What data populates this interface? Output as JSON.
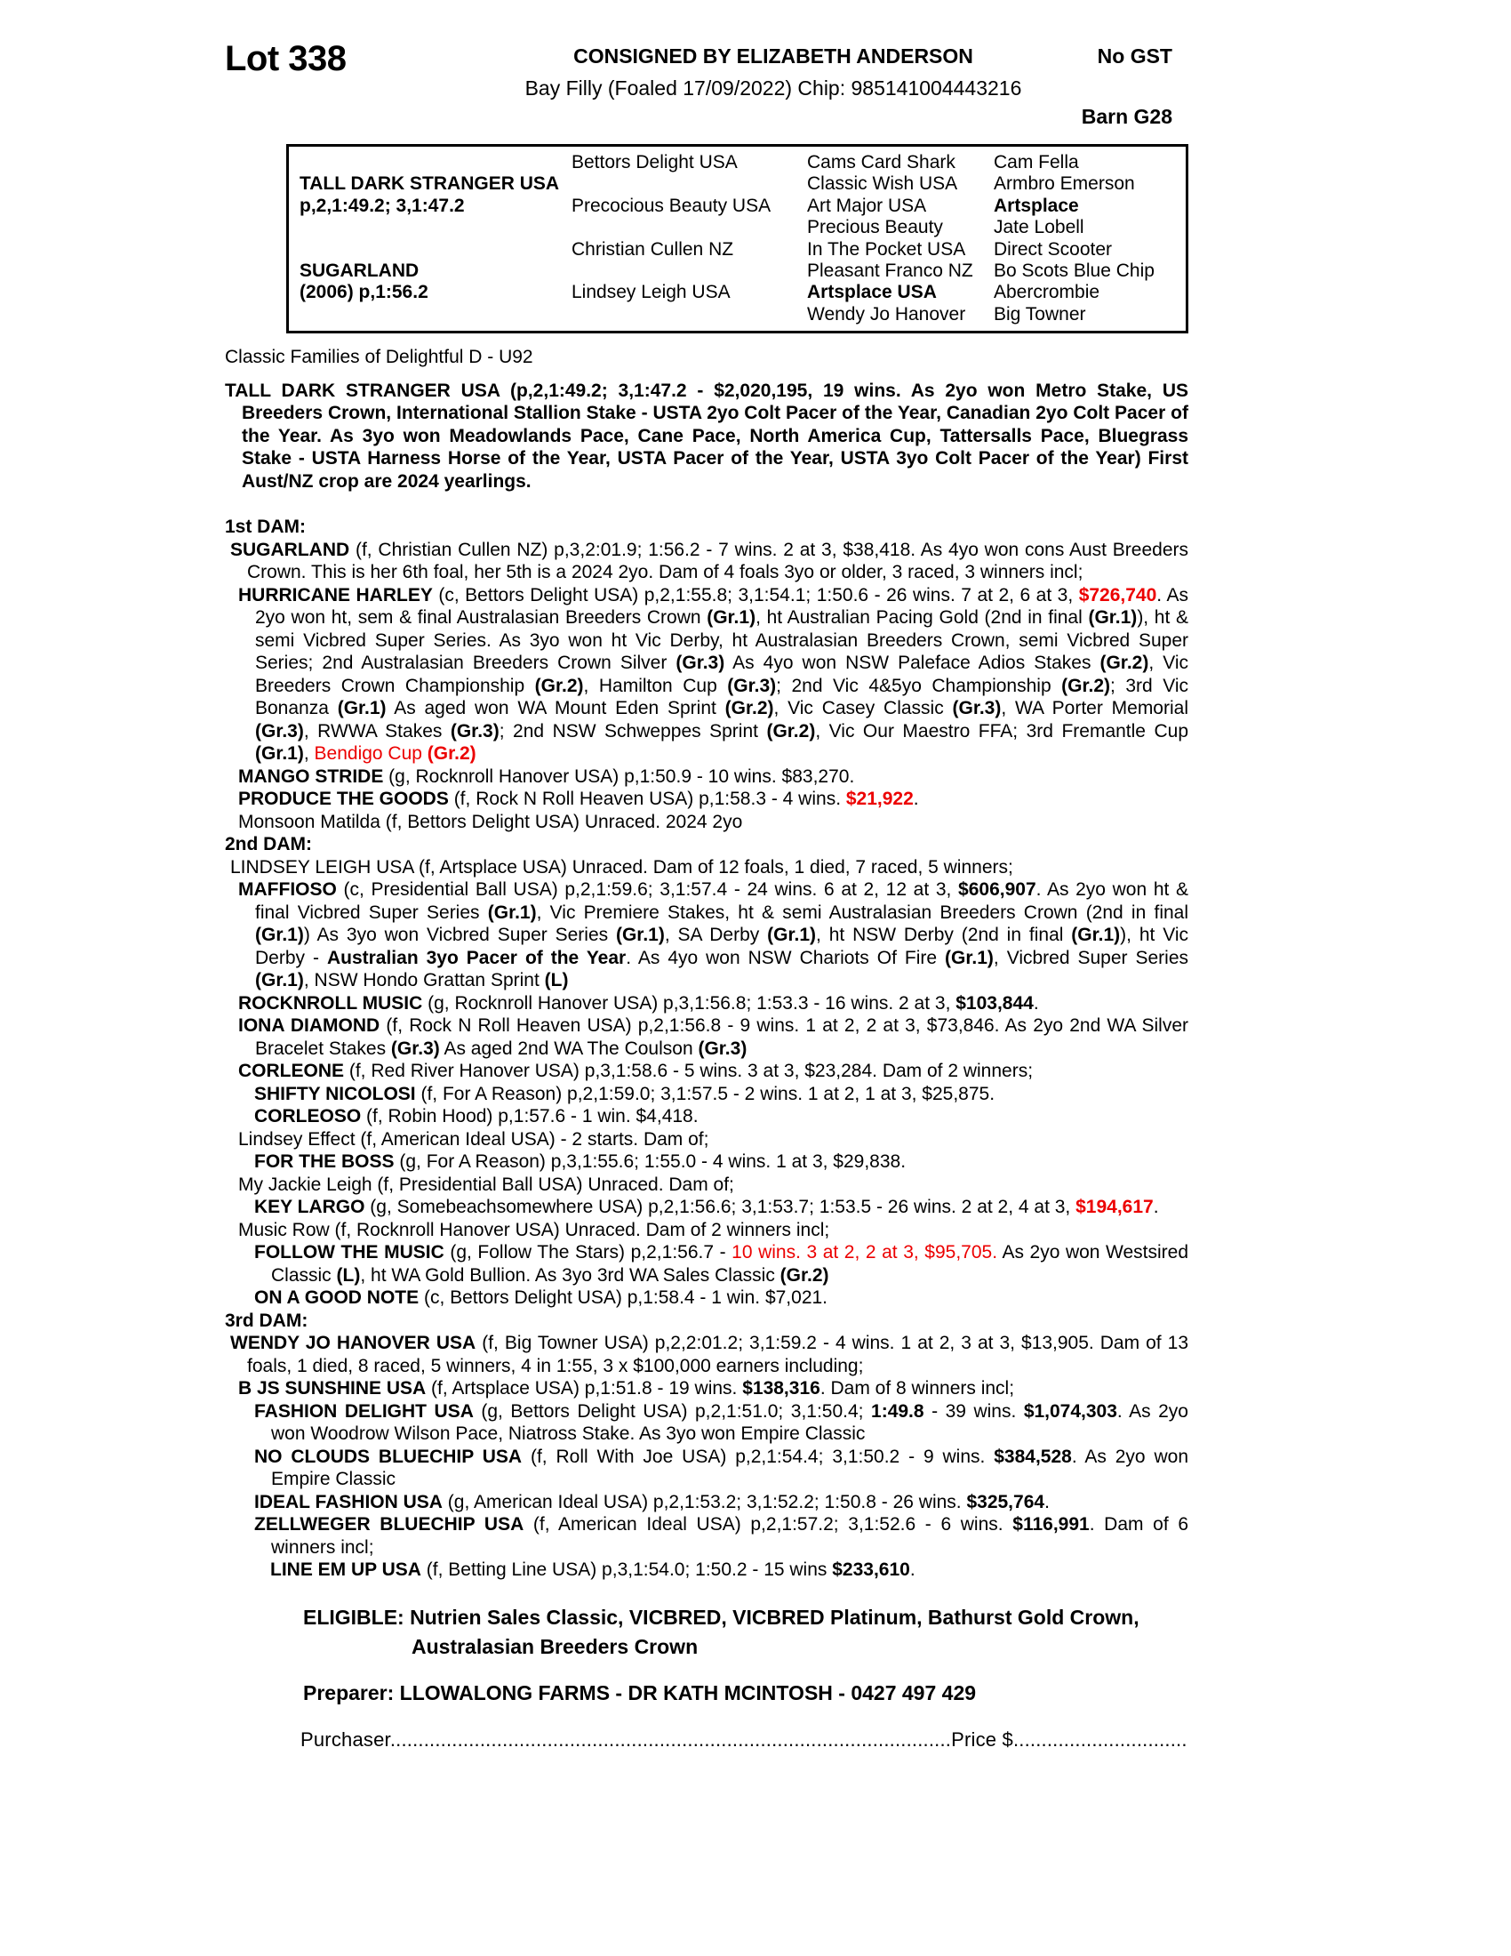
{
  "colors": {
    "text": "#000000",
    "highlight_red": "#ec0000"
  },
  "header": {
    "lot": "Lot 338",
    "consignor": "CONSIGNED BY ELIZABETH ANDERSON",
    "description": "Bay Filly (Foaled 17/09/2022) Chip: 985141004443216",
    "gst": "No GST",
    "barn": "Barn G28"
  },
  "pedigree_table": {
    "rows": [
      [
        {
          "t": "",
          "b": false
        },
        {
          "t": "Bettors Delight USA",
          "b": false
        },
        {
          "t": "Cams Card Shark",
          "b": false
        },
        {
          "t": "Cam Fella",
          "b": false
        }
      ],
      [
        {
          "t": "TALL DARK STRANGER USA",
          "b": true
        },
        {
          "t": "",
          "b": false
        },
        {
          "t": "Classic Wish USA",
          "b": false
        },
        {
          "t": "Armbro Emerson",
          "b": false
        }
      ],
      [
        {
          "t": "p,2,1:49.2; 3,1:47.2",
          "b": true
        },
        {
          "t": "Precocious Beauty USA",
          "b": false
        },
        {
          "t": "Art Major USA",
          "b": false
        },
        {
          "t": "Artsplace",
          "b": true
        }
      ],
      [
        {
          "t": "",
          "b": false
        },
        {
          "t": "",
          "b": false
        },
        {
          "t": "Precious Beauty",
          "b": false
        },
        {
          "t": "Jate Lobell",
          "b": false
        }
      ],
      [
        {
          "t": "",
          "b": false
        },
        {
          "t": "Christian Cullen NZ",
          "b": false
        },
        {
          "t": "In The Pocket USA",
          "b": false
        },
        {
          "t": "Direct Scooter",
          "b": false
        }
      ],
      [
        {
          "t": "SUGARLAND",
          "b": true
        },
        {
          "t": "",
          "b": false
        },
        {
          "t": "Pleasant Franco NZ",
          "b": false
        },
        {
          "t": "Bo Scots Blue Chip",
          "b": false
        }
      ],
      [
        {
          "t": "(2006) p,1:56.2",
          "b": true
        },
        {
          "t": "Lindsey Leigh USA",
          "b": false
        },
        {
          "t": "Artsplace USA",
          "b": true
        },
        {
          "t": "Abercrombie",
          "b": false
        }
      ],
      [
        {
          "t": "",
          "b": false
        },
        {
          "t": "",
          "b": false
        },
        {
          "t": "Wendy Jo Hanover",
          "b": false
        },
        {
          "t": "Big Towner",
          "b": false
        }
      ]
    ]
  },
  "paragraphs": [
    {
      "indent": 0,
      "justify": false,
      "mt": 0,
      "seg": [
        [
          "Classic Families of Delightful D - U92",
          ""
        ]
      ]
    },
    {
      "indent": 0,
      "justify": true,
      "mt": 12,
      "seg": [
        [
          "TALL DARK STRANGER USA (p,2,1:49.2; 3,1:47.2 - $2,020,195, 19 wins. As 2yo won Metro Stake, US Breeders Crown, International Stallion Stake - USTA 2yo Colt Pacer of the Year, Canadian 2yo Colt Pacer of the Year. As 3yo won Meadowlands Pace, Cane Pace, North America Cup, Tattersalls Pace, Bluegrass Stake - USTA Harness Horse of the Year, USTA Pacer of the Year, USTA 3yo Colt Pacer of the Year) First Aust/NZ crop are 2024 yearlings.",
          "b"
        ]
      ]
    },
    {
      "indent": 0,
      "justify": false,
      "mt": 26,
      "seg": [
        [
          "1st DAM:",
          "b"
        ]
      ]
    },
    {
      "indent": 1,
      "justify": true,
      "mt": 0,
      "seg": [
        [
          "SUGARLAND",
          "b"
        ],
        [
          " (f, Christian Cullen NZ) p,3,2:01.9; 1:56.2 - 7 wins. 2 at 3, $38,418. As 4yo won cons Aust Breeders Crown. This is her 6th foal, her 5th is a 2024 2yo. Dam of 4 foals 3yo or older, 3 raced, 3 winners incl;",
          ""
        ]
      ]
    },
    {
      "indent": 2,
      "justify": true,
      "mt": 0,
      "seg": [
        [
          "HURRICANE HARLEY",
          "b"
        ],
        [
          " (c, Bettors Delight USA) p,2,1:55.8; 3,1:54.1; 1:50.6 - 26 wins. 7 at 2, 6 at 3, ",
          ""
        ],
        [
          "$726,740",
          "br"
        ],
        [
          ". As 2yo won ht, sem & final Australasian Breeders Crown ",
          ""
        ],
        [
          "(Gr.1)",
          "b"
        ],
        [
          ", ht Australian Pacing Gold (2nd in final ",
          ""
        ],
        [
          "(Gr.1)",
          "b"
        ],
        [
          "), ht & semi Vicbred Super Series. As 3yo won ht Vic Derby, ht Australasian Breeders Crown, semi Vicbred Super Series; 2nd Australasian Breeders Crown Silver ",
          ""
        ],
        [
          "(Gr.3)",
          "b"
        ],
        [
          " As 4yo won NSW Paleface Adios Stakes ",
          ""
        ],
        [
          "(Gr.2)",
          "b"
        ],
        [
          ", Vic Breeders Crown Championship ",
          ""
        ],
        [
          "(Gr.2)",
          "b"
        ],
        [
          ", Hamilton Cup ",
          ""
        ],
        [
          "(Gr.3)",
          "b"
        ],
        [
          "; 2nd Vic 4&5yo Championship ",
          ""
        ],
        [
          "(Gr.2)",
          "b"
        ],
        [
          "; 3rd Vic Bonanza ",
          ""
        ],
        [
          "(Gr.1)",
          "b"
        ],
        [
          " As aged won WA Mount Eden Sprint ",
          ""
        ],
        [
          "(Gr.2)",
          "b"
        ],
        [
          ", Vic Casey Classic ",
          ""
        ],
        [
          "(Gr.3)",
          "b"
        ],
        [
          ", WA Porter Memorial ",
          ""
        ],
        [
          "(Gr.3)",
          "b"
        ],
        [
          ", RWWA Stakes ",
          ""
        ],
        [
          "(Gr.3)",
          "b"
        ],
        [
          "; 2nd NSW Schweppes Sprint ",
          ""
        ],
        [
          "(Gr.2)",
          "b"
        ],
        [
          ", Vic Our Maestro FFA; 3rd Fremantle Cup ",
          ""
        ],
        [
          "(Gr.1)",
          "b"
        ],
        [
          ", ",
          ""
        ],
        [
          "Bendigo Cup ",
          "r"
        ],
        [
          "(Gr.2)",
          "br"
        ]
      ]
    },
    {
      "indent": 2,
      "justify": false,
      "mt": 0,
      "seg": [
        [
          "MANGO STRIDE",
          "b"
        ],
        [
          " (g, Rocknroll Hanover USA) p,1:50.9 - 10 wins. $83,270.",
          ""
        ]
      ]
    },
    {
      "indent": 2,
      "justify": false,
      "mt": 0,
      "seg": [
        [
          "PRODUCE THE GOODS",
          "b"
        ],
        [
          " (f, Rock N Roll Heaven USA) p,1:58.3 - 4 wins. ",
          ""
        ],
        [
          "$21,922",
          "br"
        ],
        [
          ".",
          ""
        ]
      ]
    },
    {
      "indent": 2,
      "justify": false,
      "mt": 0,
      "seg": [
        [
          "Monsoon Matilda (f, Bettors Delight USA) Unraced. 2024 2yo",
          ""
        ]
      ]
    },
    {
      "indent": 0,
      "justify": false,
      "mt": 0,
      "seg": [
        [
          "2nd DAM:",
          "b"
        ]
      ]
    },
    {
      "indent": 1,
      "justify": false,
      "mt": 0,
      "seg": [
        [
          "LINDSEY LEIGH USA (f, Artsplace USA) Unraced. Dam of 12 foals, 1 died, 7 raced, 5 winners;",
          ""
        ]
      ]
    },
    {
      "indent": 2,
      "justify": true,
      "mt": 0,
      "seg": [
        [
          "MAFFIOSO",
          "b"
        ],
        [
          " (c, Presidential Ball USA) p,2,1:59.6; 3,1:57.4 - 24 wins. 6 at 2, 12 at 3, ",
          ""
        ],
        [
          "$606,907",
          "b"
        ],
        [
          ". As 2yo won ht & final Vicbred Super Series ",
          ""
        ],
        [
          "(Gr.1)",
          "b"
        ],
        [
          ", Vic Premiere Stakes, ht & semi Australasian Breeders Crown (2nd in final ",
          ""
        ],
        [
          "(Gr.1)",
          "b"
        ],
        [
          ") As 3yo won Vicbred Super Series ",
          ""
        ],
        [
          "(Gr.1)",
          "b"
        ],
        [
          ", SA Derby ",
          ""
        ],
        [
          "(Gr.1)",
          "b"
        ],
        [
          ", ht NSW Derby (2nd in final ",
          ""
        ],
        [
          "(Gr.1)",
          "b"
        ],
        [
          "), ht Vic Derby - ",
          ""
        ],
        [
          "Australian 3yo Pacer of the Year",
          "b"
        ],
        [
          ". As 4yo won NSW Chariots Of Fire ",
          ""
        ],
        [
          "(Gr.1)",
          "b"
        ],
        [
          ", Vicbred Super Series ",
          ""
        ],
        [
          "(Gr.1)",
          "b"
        ],
        [
          ", NSW Hondo Grattan Sprint ",
          ""
        ],
        [
          "(L)",
          "b"
        ]
      ]
    },
    {
      "indent": 2,
      "justify": false,
      "mt": 0,
      "seg": [
        [
          "ROCKNROLL MUSIC",
          "b"
        ],
        [
          " (g, Rocknroll Hanover USA) p,3,1:56.8; 1:53.3 - 16 wins. 2 at 3, ",
          ""
        ],
        [
          "$103,844",
          "b"
        ],
        [
          ".",
          ""
        ]
      ]
    },
    {
      "indent": 2,
      "justify": true,
      "mt": 0,
      "seg": [
        [
          "IONA DIAMOND",
          "b"
        ],
        [
          " (f, Rock N Roll Heaven USA) p,2,1:56.8 - 9 wins. 1 at 2, 2 at 3, $73,846. As 2yo 2nd WA Silver Bracelet Stakes ",
          ""
        ],
        [
          "(Gr.3)",
          "b"
        ],
        [
          " As aged 2nd WA The Coulson ",
          ""
        ],
        [
          "(Gr.3)",
          "b"
        ]
      ]
    },
    {
      "indent": 2,
      "justify": false,
      "mt": 0,
      "seg": [
        [
          "CORLEONE",
          "b"
        ],
        [
          " (f, Red River Hanover USA) p,3,1:58.6 - 5 wins. 3 at 3, $23,284. Dam of 2 winners;",
          ""
        ]
      ]
    },
    {
      "indent": 3,
      "justify": false,
      "mt": 0,
      "seg": [
        [
          "SHIFTY NICOLOSI",
          "b"
        ],
        [
          " (f, For A Reason) p,2,1:59.0; 3,1:57.5 - 2 wins. 1 at 2, 1 at 3, $25,875.",
          ""
        ]
      ]
    },
    {
      "indent": 3,
      "justify": false,
      "mt": 0,
      "seg": [
        [
          "CORLEOSO",
          "b"
        ],
        [
          " (f, Robin Hood) p,1:57.6 - 1 win. $4,418.",
          ""
        ]
      ]
    },
    {
      "indent": 2,
      "justify": false,
      "mt": 0,
      "seg": [
        [
          "Lindsey Effect (f, American Ideal USA) - 2 starts. Dam of;",
          ""
        ]
      ]
    },
    {
      "indent": 3,
      "justify": false,
      "mt": 0,
      "seg": [
        [
          "FOR THE BOSS",
          "b"
        ],
        [
          " (g, For A Reason) p,3,1:55.6; 1:55.0 - 4 wins. 1 at 3, $29,838.",
          ""
        ]
      ]
    },
    {
      "indent": 2,
      "justify": false,
      "mt": 0,
      "seg": [
        [
          "My Jackie Leigh (f, Presidential Ball USA) Unraced. Dam of;",
          ""
        ]
      ]
    },
    {
      "indent": 3,
      "justify": true,
      "mt": 0,
      "seg": [
        [
          "KEY LARGO",
          "b"
        ],
        [
          " (g, Somebeachsomewhere USA) p,2,1:56.6; 3,1:53.7; 1:53.5 - 26 wins. 2 at 2, 4 at 3, ",
          ""
        ],
        [
          "$194,617",
          "br"
        ],
        [
          ".",
          ""
        ]
      ]
    },
    {
      "indent": 2,
      "justify": false,
      "mt": 0,
      "seg": [
        [
          "Music Row (f, Rocknroll Hanover USA) Unraced. Dam of 2 winners incl;",
          ""
        ]
      ]
    },
    {
      "indent": 3,
      "justify": true,
      "mt": 0,
      "seg": [
        [
          "FOLLOW THE MUSIC",
          "b"
        ],
        [
          " (g, Follow The Stars) p,2,1:56.7 - ",
          ""
        ],
        [
          "10 wins. 3 at 2, 2 at 3, $95,705.",
          "r"
        ],
        [
          " As 2yo won Westsired Classic ",
          ""
        ],
        [
          "(L)",
          "b"
        ],
        [
          ", ht WA Gold Bullion. As 3yo 3rd WA Sales Classic ",
          ""
        ],
        [
          "(Gr.2)",
          "b"
        ]
      ]
    },
    {
      "indent": 3,
      "justify": false,
      "mt": 0,
      "seg": [
        [
          "ON A GOOD NOTE",
          "b"
        ],
        [
          " (c, Bettors Delight USA) p,1:58.4 - 1 win. $7,021.",
          ""
        ]
      ]
    },
    {
      "indent": 0,
      "justify": false,
      "mt": 0,
      "seg": [
        [
          "3rd DAM:",
          "b"
        ]
      ]
    },
    {
      "indent": 1,
      "justify": true,
      "mt": 0,
      "seg": [
        [
          "WENDY JO HANOVER USA",
          "b"
        ],
        [
          " (f, Big Towner USA) p,2,2:01.2; 3,1:59.2 - 4 wins. 1 at 2, 3 at 3, $13,905. Dam of 13 foals, 1 died, 8 raced, 5 winners, 4 in 1:55, 3 x $100,000 earners including;",
          ""
        ]
      ]
    },
    {
      "indent": 2,
      "justify": false,
      "mt": 0,
      "seg": [
        [
          "B JS SUNSHINE USA",
          "b"
        ],
        [
          " (f, Artsplace USA) p,1:51.8 - 19 wins. ",
          ""
        ],
        [
          "$138,316",
          "b"
        ],
        [
          ". Dam of 8 winners incl;",
          ""
        ]
      ]
    },
    {
      "indent": 3,
      "justify": true,
      "mt": 0,
      "seg": [
        [
          "FASHION DELIGHT USA",
          "b"
        ],
        [
          " (g, Bettors Delight USA) p,2,1:51.0; 3,1:50.4; ",
          ""
        ],
        [
          "1:49.8",
          "b"
        ],
        [
          " - 39 wins. ",
          ""
        ],
        [
          "$1,074,303",
          "b"
        ],
        [
          ". As 2yo won Woodrow Wilson Pace, Niatross Stake. As 3yo won Empire Classic",
          ""
        ]
      ]
    },
    {
      "indent": 3,
      "justify": true,
      "mt": 0,
      "seg": [
        [
          "NO CLOUDS BLUECHIP USA",
          "b"
        ],
        [
          " (f, Roll With Joe USA) p,2,1:54.4; 3,1:50.2 - 9 wins. ",
          ""
        ],
        [
          "$384,528",
          "b"
        ],
        [
          ". As 2yo won Empire Classic",
          ""
        ]
      ]
    },
    {
      "indent": 3,
      "justify": false,
      "mt": 0,
      "seg": [
        [
          "IDEAL FASHION USA",
          "b"
        ],
        [
          " (g, American Ideal USA) p,2,1:53.2; 3,1:52.2; 1:50.8 - 26 wins. ",
          ""
        ],
        [
          "$325,764",
          "b"
        ],
        [
          ".",
          ""
        ]
      ]
    },
    {
      "indent": 3,
      "justify": true,
      "mt": 0,
      "seg": [
        [
          "ZELLWEGER BLUECHIP USA",
          "b"
        ],
        [
          " (f, American Ideal USA) p,2,1:57.2; 3,1:52.6 - 6 wins. ",
          ""
        ],
        [
          "$116,991",
          "b"
        ],
        [
          ". Dam of 6 winners incl;",
          ""
        ]
      ]
    },
    {
      "indent": 4,
      "justify": false,
      "mt": 0,
      "seg": [
        [
          "LINE EM UP USA",
          "b"
        ],
        [
          " (f, Betting Line USA) p,3,1:54.0; 1:50.2 - 15 wins ",
          ""
        ],
        [
          "$233,610",
          "b"
        ],
        [
          ".",
          ""
        ]
      ]
    }
  ],
  "footer": {
    "eligible": "ELIGIBLE: Nutrien Sales Classic, VICBRED, VICBRED Platinum, Bathurst Gold Crown, Australasian Breeders Crown",
    "preparer": "Preparer: LLOWALONG FARMS - DR KATH MCINTOSH - 0427 497 429",
    "purchaser_label": "Purchaser",
    "purchaser_leader": "....................................................................................................",
    "price_label": "Price $",
    "price_leader": "....................................."
  }
}
